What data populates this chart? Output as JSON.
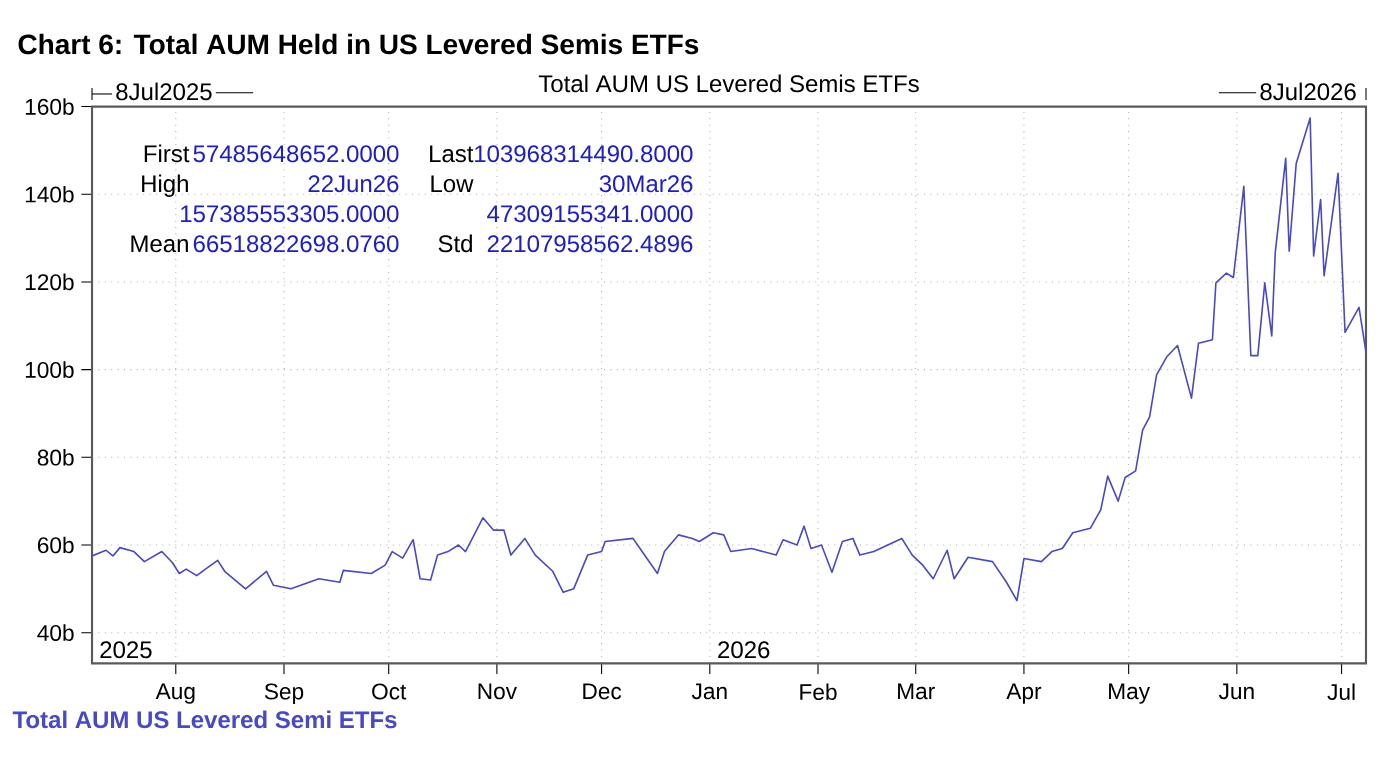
{
  "chart_data": {
    "type": "line",
    "title": "Chart 6: Total AUM Held in US Levered Semis ETFs",
    "subtitle": "Total AUM US Levered Semis ETFs",
    "xlim": [
      "2025-07-08",
      "2026-07-08"
    ],
    "xticks": [
      {
        "value": "2025-08-01",
        "label": "Aug"
      },
      {
        "value": "2025-09-01",
        "label": "Sep"
      },
      {
        "value": "2025-10-01",
        "label": "Oct"
      },
      {
        "value": "2025-11-01",
        "label": "Nov"
      },
      {
        "value": "2025-12-01",
        "label": "Dec"
      },
      {
        "value": "2026-01-01",
        "label": "Jan"
      },
      {
        "value": "2026-02-01",
        "label": "Feb"
      },
      {
        "value": "2026-03-01",
        "label": "Mar"
      },
      {
        "value": "2026-04-01",
        "label": "Apr"
      },
      {
        "value": "2026-05-01",
        "label": "May"
      },
      {
        "value": "2026-06-01",
        "label": "Jun"
      },
      {
        "value": "2026-07-01",
        "label": "Jul"
      }
    ],
    "ylim": [
      33,
      160
    ],
    "yticks": [
      {
        "value": 40,
        "label": "40b"
      },
      {
        "value": 60,
        "label": "60b"
      },
      {
        "value": 80,
        "label": "80b"
      },
      {
        "value": 100,
        "label": "100b"
      },
      {
        "value": 120,
        "label": "120b"
      },
      {
        "value": 140,
        "label": "140b"
      },
      {
        "value": 160,
        "label": "160b"
      }
    ],
    "grid": true,
    "legend": "bottom left",
    "annotations": [
      "8Jul2025",
      "8Jul2026",
      "2025",
      "2026",
      "First",
      "57485648652.0000",
      "Last",
      "103968314490.8000",
      "High",
      "22Jun26",
      "Low",
      "30Mar26",
      "157385553305.0000",
      "47309155341.0000",
      "Mean",
      "66518822698.0760",
      "Std",
      "22107958562.4896"
    ],
    "series": [
      {
        "name": "Total AUM US Levered Semi ETFs",
        "color": "#4848c8",
        "x": [
          "2025-07-08",
          "2025-07-12",
          "2025-07-14",
          "2025-07-16",
          "2025-07-20",
          "2025-07-23",
          "2025-07-28",
          "2025-07-31",
          "2025-08-02",
          "2025-08-04",
          "2025-08-07",
          "2025-08-09",
          "2025-08-13",
          "2025-08-15",
          "2025-08-21",
          "2025-08-27",
          "2025-08-29",
          "2025-09-03",
          "2025-09-11",
          "2025-09-17",
          "2025-09-18",
          "2025-09-26",
          "2025-09-30",
          "2025-10-02",
          "2025-10-05",
          "2025-10-08",
          "2025-10-10",
          "2025-10-13",
          "2025-10-15",
          "2025-10-18",
          "2025-10-21",
          "2025-10-23",
          "2025-10-28",
          "2025-10-31",
          "2025-11-03",
          "2025-11-05",
          "2025-11-09",
          "2025-11-12",
          "2025-11-17",
          "2025-11-20",
          "2025-11-23",
          "2025-11-27",
          "2025-12-01",
          "2025-12-02",
          "2025-12-10",
          "2025-12-12",
          "2025-12-17",
          "2025-12-19",
          "2025-12-23",
          "2025-12-27",
          "2025-12-29",
          "2026-01-02",
          "2026-01-05",
          "2026-01-07",
          "2026-01-13",
          "2026-01-20",
          "2026-01-22",
          "2026-01-26",
          "2026-01-28",
          "2026-01-30",
          "2026-02-02",
          "2026-02-05",
          "2026-02-08",
          "2026-02-11",
          "2026-02-13",
          "2026-02-17",
          "2026-02-25",
          "2026-02-28",
          "2026-03-03",
          "2026-03-06",
          "2026-03-10",
          "2026-03-12",
          "2026-03-16",
          "2026-03-23",
          "2026-03-27",
          "2026-03-30",
          "2026-04-01",
          "2026-04-06",
          "2026-04-09",
          "2026-04-12",
          "2026-04-15",
          "2026-04-20",
          "2026-04-23",
          "2026-04-25",
          "2026-04-28",
          "2026-04-30",
          "2026-05-03",
          "2026-05-05",
          "2026-05-07",
          "2026-05-09",
          "2026-05-12",
          "2026-05-15",
          "2026-05-19",
          "2026-05-21",
          "2026-05-25",
          "2026-05-26",
          "2026-05-29",
          "2026-05-31",
          "2026-06-03",
          "2026-06-05",
          "2026-06-07",
          "2026-06-09",
          "2026-06-11",
          "2026-06-12",
          "2026-06-15",
          "2026-06-16",
          "2026-06-18",
          "2026-06-22",
          "2026-06-23",
          "2026-06-25",
          "2026-06-26",
          "2026-06-30",
          "2026-07-02",
          "2026-07-06",
          "2026-07-08"
        ],
        "values": [
          57.5,
          58.8,
          57.5,
          59.4,
          58.5,
          56.2,
          58.5,
          56,
          53.5,
          54.5,
          53,
          54.2,
          56.5,
          54,
          50,
          54,
          50.8,
          50,
          52.3,
          51.5,
          54.2,
          53.5,
          55.4,
          58.5,
          57,
          61.2,
          52.3,
          52,
          57.7,
          58.5,
          60,
          58.5,
          66.2,
          63.4,
          63.4,
          57.7,
          61.5,
          57.7,
          54,
          49.2,
          50,
          57.7,
          58.5,
          60.8,
          61.5,
          59.2,
          53.5,
          58.5,
          62.3,
          61.5,
          60.8,
          62.8,
          62.3,
          58.5,
          59.2,
          57.7,
          61.2,
          60,
          64.3,
          59.2,
          60,
          53.8,
          60.8,
          61.5,
          57.7,
          58.5,
          61.5,
          57.7,
          55.4,
          52.3,
          58.8,
          52.3,
          57.2,
          56.2,
          51.5,
          47.3,
          56.9,
          56.2,
          58.5,
          59.2,
          62.8,
          63.8,
          68,
          75.7,
          70,
          75.4,
          76.9,
          86.2,
          89.2,
          98.8,
          103,
          105.5,
          93.5,
          106,
          106.8,
          119.8,
          122,
          121,
          141.8,
          103.2,
          103.2,
          119.8,
          107.7,
          126.7,
          148.2,
          127,
          147,
          157.4,
          125.9,
          138.8,
          121.4,
          144.8,
          108.5,
          114.2,
          104
        ]
      }
    ]
  }
}
